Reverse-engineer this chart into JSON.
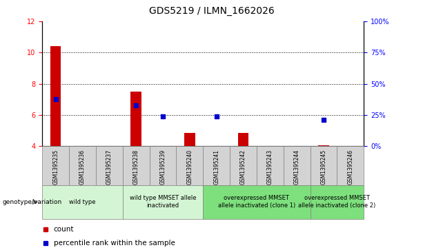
{
  "title": "GDS5219 / ILMN_1662026",
  "samples": [
    "GSM1395235",
    "GSM1395236",
    "GSM1395237",
    "GSM1395238",
    "GSM1395239",
    "GSM1395240",
    "GSM1395241",
    "GSM1395242",
    "GSM1395243",
    "GSM1395244",
    "GSM1395245",
    "GSM1395246"
  ],
  "counts": [
    10.4,
    null,
    null,
    7.5,
    null,
    4.85,
    null,
    4.85,
    null,
    null,
    4.05,
    null
  ],
  "percentiles": [
    7.0,
    null,
    null,
    6.6,
    5.9,
    null,
    5.9,
    null,
    null,
    null,
    5.7,
    null
  ],
  "ylim_left": [
    4,
    12
  ],
  "ylim_right": [
    0,
    100
  ],
  "yticks_left": [
    4,
    6,
    8,
    10,
    12
  ],
  "yticks_right": [
    0,
    25,
    50,
    75,
    100
  ],
  "ytick_labels_right": [
    "0%",
    "25%",
    "50%",
    "75%",
    "100%"
  ],
  "bar_color": "#cc0000",
  "dot_color": "#0000cc",
  "bar_bottom": 4,
  "groups": [
    {
      "label": "wild type",
      "start": 0,
      "end": 2,
      "color": "#d4f5d4"
    },
    {
      "label": "wild type MMSET allele\ninactivated",
      "start": 3,
      "end": 5,
      "color": "#d4f5d4"
    },
    {
      "label": "overexpressed MMSET\nallele inactivated (clone 1)",
      "start": 6,
      "end": 9,
      "color": "#7de07d"
    },
    {
      "label": "overexpressed MMSET\nallele inactivated (clone 2)",
      "start": 10,
      "end": 11,
      "color": "#7de07d"
    }
  ],
  "genotype_label": "genotype/variation",
  "legend_count": "count",
  "legend_percentile": "percentile rank within the sample",
  "grid_yticks": [
    6,
    8,
    10
  ],
  "sample_col_color": "#d3d3d3",
  "title_fontsize": 10,
  "tick_fontsize": 7,
  "sample_fontsize": 5.5,
  "group_fontsize": 6
}
